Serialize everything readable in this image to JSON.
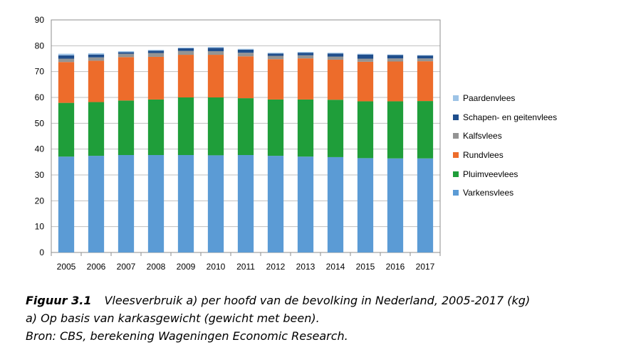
{
  "chart_data": {
    "type": "bar",
    "stacked": true,
    "categories": [
      "2005",
      "2006",
      "2007",
      "2008",
      "2009",
      "2010",
      "2011",
      "2012",
      "2013",
      "2014",
      "2015",
      "2016",
      "2017"
    ],
    "ylim": [
      0,
      90
    ],
    "yticks": [
      0,
      10,
      20,
      30,
      40,
      50,
      60,
      70,
      80,
      90
    ],
    "grid": true,
    "legend_position": "right",
    "series": [
      {
        "name": "Varkensvlees",
        "color": "#5b9bd5",
        "values": [
          37.1,
          37.4,
          37.7,
          37.7,
          37.7,
          37.6,
          37.7,
          37.4,
          37.1,
          36.9,
          36.5,
          36.4,
          36.4
        ]
      },
      {
        "name": "Pluimveevlees",
        "color": "#1f9e3a",
        "values": [
          20.8,
          20.8,
          21.1,
          21.5,
          22.3,
          22.4,
          22.0,
          21.8,
          22.1,
          22.2,
          22.0,
          22.1,
          22.2
        ]
      },
      {
        "name": "Rundvlees",
        "color": "#ed6c2b",
        "values": [
          15.8,
          16.0,
          16.8,
          16.5,
          16.5,
          16.5,
          16.2,
          15.6,
          15.9,
          15.5,
          15.3,
          15.4,
          15.4
        ]
      },
      {
        "name": "Kalfsvlees",
        "color": "#949494",
        "values": [
          1.3,
          1.3,
          1.3,
          1.5,
          1.5,
          1.4,
          1.4,
          1.3,
          1.2,
          1.2,
          1.2,
          1.2,
          1.1
        ]
      },
      {
        "name": "Schapen- en geitenvlees",
        "color": "#1f4e8c",
        "values": [
          1.3,
          1.1,
          0.6,
          0.9,
          1.0,
          1.3,
          1.2,
          0.9,
          1.0,
          1.2,
          1.6,
          1.3,
          1.1
        ]
      },
      {
        "name": "Paardenvlees",
        "color": "#9dc3e6",
        "values": [
          0.6,
          0.5,
          0.4,
          0.3,
          0.3,
          0.3,
          0.3,
          0.3,
          0.3,
          0.3,
          0.3,
          0.2,
          0.2
        ]
      }
    ]
  },
  "legend": {
    "items": [
      {
        "label": "Paardenvlees",
        "color": "#9dc3e6"
      },
      {
        "label": "Schapen- en geitenvlees",
        "color": "#1f4e8c"
      },
      {
        "label": "Kalfsvlees",
        "color": "#949494"
      },
      {
        "label": "Rundvlees",
        "color": "#ed6c2b"
      },
      {
        "label": "Pluimveevlees",
        "color": "#1f9e3a"
      },
      {
        "label": "Varkensvlees",
        "color": "#5b9bd5"
      }
    ]
  },
  "caption": {
    "figure_label": "Figuur 3.1",
    "title": "Vleesverbruik a) per hoofd van de bevolking in Nederland, 2005-2017 (kg)",
    "note": "a) Op basis van karkasgewicht (gewicht met been).",
    "source": "Bron: CBS, berekening Wageningen Economic Research."
  }
}
